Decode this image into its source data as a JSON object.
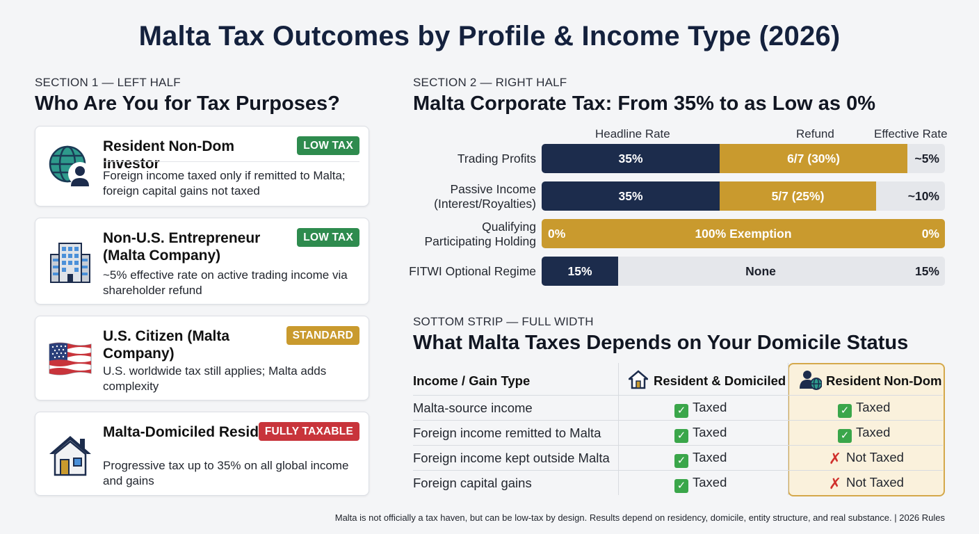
{
  "title": "Malta Tax Outcomes by Profile & Income Type (2026)",
  "section1": {
    "eyebrow": "SECTION 1 — LEFT HALF",
    "heading": "Who Are You for Tax Purposes?",
    "profiles": [
      {
        "title": "Resident Non-Dom Investor",
        "badge": "LOW TAX",
        "badge_color": "#2e8b4e",
        "icon": "globe-person-icon",
        "description": "Foreign income taxed only if remitted to Malta; foreign capital gains not taxed"
      },
      {
        "title": "Non-U.S. Entrepreneur (Malta Company)",
        "badge": "LOW TAX",
        "badge_color": "#2e8b4e",
        "icon": "office-building-icon",
        "description": "~5% effective rate on active trading income via shareholder refund"
      },
      {
        "title": "U.S. Citizen (Malta Company)",
        "badge": "STANDARD",
        "badge_color": "#c99a2e",
        "icon": "us-flag-icon",
        "description": "U.S. worldwide tax still applies; Malta adds complexity"
      },
      {
        "title": "Malta-Domiciled Resident",
        "badge": "FULLY TAXABLE",
        "badge_color": "#c8343b",
        "icon": "house-icon",
        "description": "Progressive tax up to 35% on all global income and gains"
      }
    ]
  },
  "section2": {
    "eyebrow": "SECTION 2 — RIGHT HALF",
    "heading": "Malta Corporate Tax: From 35% to as Low as 0%",
    "columns": {
      "headline": "Headline Rate",
      "refund": "Refund",
      "effective": "Effective Rate"
    },
    "colors": {
      "headline": "#1c2c4c",
      "refund": "#c99a2e",
      "track": "#e5e7eb"
    },
    "rows": [
      {
        "label": "Trading Profits",
        "headline_text": "35%",
        "refund_text": "6/7 (30%)",
        "effective_text": "~5%",
        "headline_pct": 35,
        "refund_pct": 30
      },
      {
        "label": "Passive Income (Interest/Royalties)",
        "headline_text": "35%",
        "refund_text": "5/7 (25%)",
        "effective_text": "~10%",
        "headline_pct": 35,
        "refund_pct": 25
      },
      {
        "label": "Qualifying Participating Holding",
        "headline_text": "0%",
        "refund_text": "100% Exemption",
        "effective_text": "0%",
        "headline_pct": 0,
        "refund_pct": 100
      },
      {
        "label": "FITWI Optional Regime",
        "headline_text": "15%",
        "refund_text": "None",
        "effective_text": "15%",
        "headline_pct": 15,
        "refund_pct": 0
      }
    ]
  },
  "section3": {
    "eyebrow": "SOTTOM STRIP — FULL WIDTH",
    "heading": "What Malta Taxes Depends on Your Domicile Status",
    "col_type": "Income / Gain Type",
    "col_domiciled": "Resident & Domiciled",
    "col_nondom": "Resident Non-Dom",
    "rows": [
      {
        "type": "Malta-source income",
        "domiciled": "Taxed",
        "nondom": "Taxed",
        "nondom_taxed": true
      },
      {
        "type": "Foreign income remitted to Malta",
        "domiciled": "Taxed",
        "nondom": "Taxed",
        "nondom_taxed": true
      },
      {
        "type": "Foreign income kept outside Malta",
        "domiciled": "Taxed",
        "nondom": "Not Taxed",
        "nondom_taxed": false
      },
      {
        "type": "Foreign capital gains",
        "domiciled": "Taxed",
        "nondom": "Not Taxed",
        "nondom_taxed": false
      }
    ]
  },
  "footnote": "Malta is not officially a tax haven, but can be low-tax by design. Results depend on residency, domicile, entity structure, and real substance. | 2026 Rules"
}
